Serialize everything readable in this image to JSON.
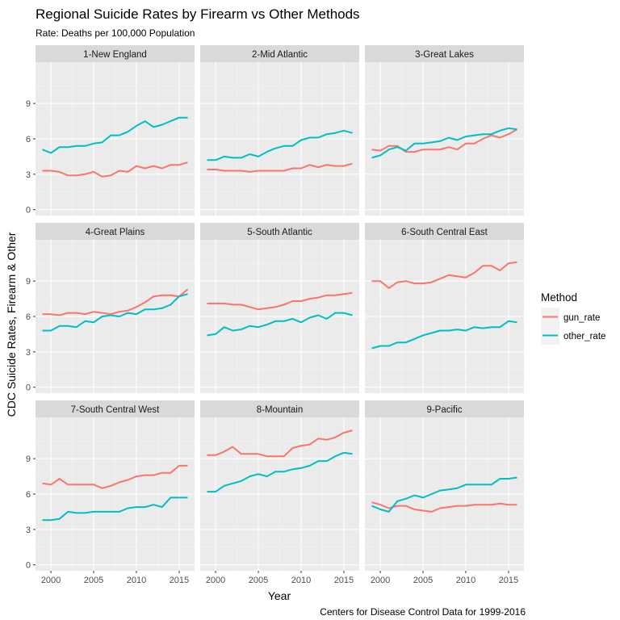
{
  "chart_data": {
    "type": "line",
    "title": "Regional Suicide Rates by Firearm vs Other Methods",
    "subtitle": "Rate: Deaths per 100,000 Population",
    "xlabel": "Year",
    "ylabel": "CDC Suicide Rates, Firearm & Other",
    "caption": "Centers for Disease Control Data for 1999-2016",
    "xlim": [
      1998.2,
      2016.8
    ],
    "ylim": [
      -0.5,
      12.5
    ],
    "x_ticks": [
      2000,
      2005,
      2010,
      2015
    ],
    "x_tick_labels": [
      "2000",
      "2005",
      "2010",
      "2015"
    ],
    "y_ticks": [
      0,
      3,
      6,
      9
    ],
    "y_tick_labels": [
      "0",
      "3",
      "6",
      "9"
    ],
    "grid": true,
    "legend": {
      "title": "Method",
      "position": "right",
      "entries": [
        {
          "name": "gun_rate",
          "color": "#F8766D"
        },
        {
          "name": "other_rate",
          "color": "#00BFC4"
        }
      ]
    },
    "x": [
      1999,
      2000,
      2001,
      2002,
      2003,
      2004,
      2005,
      2006,
      2007,
      2008,
      2009,
      2010,
      2011,
      2012,
      2013,
      2014,
      2015,
      2016
    ],
    "panels": [
      {
        "name": "1-New England",
        "series": [
          {
            "name": "gun_rate",
            "values": [
              3.3,
              3.3,
              3.2,
              2.9,
              2.9,
              3.0,
              3.2,
              2.8,
              2.9,
              3.3,
              3.2,
              3.7,
              3.5,
              3.7,
              3.5,
              3.8,
              3.8,
              4.0
            ]
          },
          {
            "name": "other_rate",
            "values": [
              5.1,
              4.8,
              5.3,
              5.3,
              5.4,
              5.4,
              5.6,
              5.7,
              6.3,
              6.3,
              6.6,
              7.1,
              7.5,
              7.0,
              7.2,
              7.5,
              7.8,
              7.8
            ]
          }
        ]
      },
      {
        "name": "2-Mid Atlantic",
        "series": [
          {
            "name": "gun_rate",
            "values": [
              3.4,
              3.4,
              3.3,
              3.3,
              3.3,
              3.2,
              3.3,
              3.3,
              3.3,
              3.3,
              3.5,
              3.5,
              3.8,
              3.6,
              3.8,
              3.7,
              3.7,
              3.9
            ]
          },
          {
            "name": "other_rate",
            "values": [
              4.2,
              4.2,
              4.5,
              4.4,
              4.4,
              4.7,
              4.5,
              4.9,
              5.2,
              5.4,
              5.4,
              5.9,
              6.1,
              6.1,
              6.4,
              6.5,
              6.7,
              6.5
            ]
          }
        ]
      },
      {
        "name": "3-Great Lakes",
        "series": [
          {
            "name": "gun_rate",
            "values": [
              5.1,
              5.0,
              5.4,
              5.4,
              4.9,
              4.9,
              5.1,
              5.1,
              5.1,
              5.3,
              5.1,
              5.6,
              5.6,
              6.0,
              6.3,
              6.1,
              6.4,
              6.8
            ]
          },
          {
            "name": "other_rate",
            "values": [
              4.4,
              4.6,
              5.1,
              5.3,
              5.0,
              5.6,
              5.6,
              5.7,
              5.8,
              6.1,
              5.9,
              6.2,
              6.3,
              6.4,
              6.4,
              6.7,
              6.9,
              6.8
            ]
          }
        ]
      },
      {
        "name": "4-Great Plains",
        "series": [
          {
            "name": "gun_rate",
            "values": [
              6.2,
              6.2,
              6.1,
              6.3,
              6.3,
              6.2,
              6.4,
              6.3,
              6.2,
              6.4,
              6.5,
              6.8,
              7.2,
              7.7,
              7.8,
              7.8,
              7.7,
              8.3
            ]
          },
          {
            "name": "other_rate",
            "values": [
              4.8,
              4.8,
              5.2,
              5.2,
              5.1,
              5.6,
              5.5,
              6.0,
              6.1,
              6.0,
              6.3,
              6.2,
              6.6,
              6.6,
              6.7,
              7.0,
              7.7,
              7.9
            ]
          }
        ]
      },
      {
        "name": "5-South Atlantic",
        "series": [
          {
            "name": "gun_rate",
            "values": [
              7.1,
              7.1,
              7.1,
              7.0,
              7.0,
              6.8,
              6.6,
              6.7,
              6.8,
              7.0,
              7.3,
              7.3,
              7.5,
              7.6,
              7.8,
              7.8,
              7.9,
              8.0
            ]
          },
          {
            "name": "other_rate",
            "values": [
              4.4,
              4.5,
              5.1,
              4.8,
              4.9,
              5.2,
              5.1,
              5.3,
              5.6,
              5.6,
              5.8,
              5.5,
              5.9,
              6.1,
              5.8,
              6.3,
              6.3,
              6.1
            ]
          }
        ]
      },
      {
        "name": "6-South Central East",
        "series": [
          {
            "name": "gun_rate",
            "values": [
              9.0,
              9.0,
              8.4,
              8.9,
              9.0,
              8.8,
              8.8,
              8.9,
              9.2,
              9.5,
              9.4,
              9.3,
              9.7,
              10.3,
              10.3,
              9.9,
              10.5,
              10.6
            ]
          },
          {
            "name": "other_rate",
            "values": [
              3.3,
              3.5,
              3.5,
              3.8,
              3.8,
              4.1,
              4.4,
              4.6,
              4.8,
              4.8,
              4.9,
              4.8,
              5.1,
              5.0,
              5.1,
              5.1,
              5.6,
              5.5
            ]
          }
        ]
      },
      {
        "name": "7-South Central West",
        "series": [
          {
            "name": "gun_rate",
            "values": [
              6.9,
              6.8,
              7.3,
              6.8,
              6.8,
              6.8,
              6.8,
              6.5,
              6.7,
              7.0,
              7.2,
              7.5,
              7.6,
              7.6,
              7.8,
              7.8,
              8.4,
              8.4
            ]
          },
          {
            "name": "other_rate",
            "values": [
              3.8,
              3.8,
              3.9,
              4.5,
              4.4,
              4.4,
              4.5,
              4.5,
              4.5,
              4.5,
              4.8,
              4.9,
              4.9,
              5.1,
              4.9,
              5.7,
              5.7,
              5.7
            ]
          }
        ]
      },
      {
        "name": "8-Mountain",
        "series": [
          {
            "name": "gun_rate",
            "values": [
              9.3,
              9.3,
              9.6,
              10.0,
              9.4,
              9.4,
              9.4,
              9.2,
              9.2,
              9.2,
              9.9,
              10.1,
              10.2,
              10.7,
              10.6,
              10.8,
              11.2,
              11.4
            ]
          },
          {
            "name": "other_rate",
            "values": [
              6.2,
              6.2,
              6.7,
              6.9,
              7.1,
              7.5,
              7.7,
              7.5,
              7.9,
              7.9,
              8.1,
              8.2,
              8.4,
              8.8,
              8.8,
              9.2,
              9.5,
              9.4
            ]
          }
        ]
      },
      {
        "name": "9-Pacific",
        "series": [
          {
            "name": "gun_rate",
            "values": [
              5.3,
              5.1,
              4.8,
              5.0,
              5.0,
              4.7,
              4.6,
              4.5,
              4.8,
              4.9,
              5.0,
              5.0,
              5.1,
              5.1,
              5.1,
              5.2,
              5.1,
              5.1
            ]
          },
          {
            "name": "other_rate",
            "values": [
              5.0,
              4.7,
              4.5,
              5.4,
              5.6,
              5.9,
              5.7,
              6.0,
              6.3,
              6.4,
              6.5,
              6.8,
              6.8,
              6.8,
              6.8,
              7.3,
              7.3,
              7.4
            ]
          }
        ]
      }
    ]
  }
}
